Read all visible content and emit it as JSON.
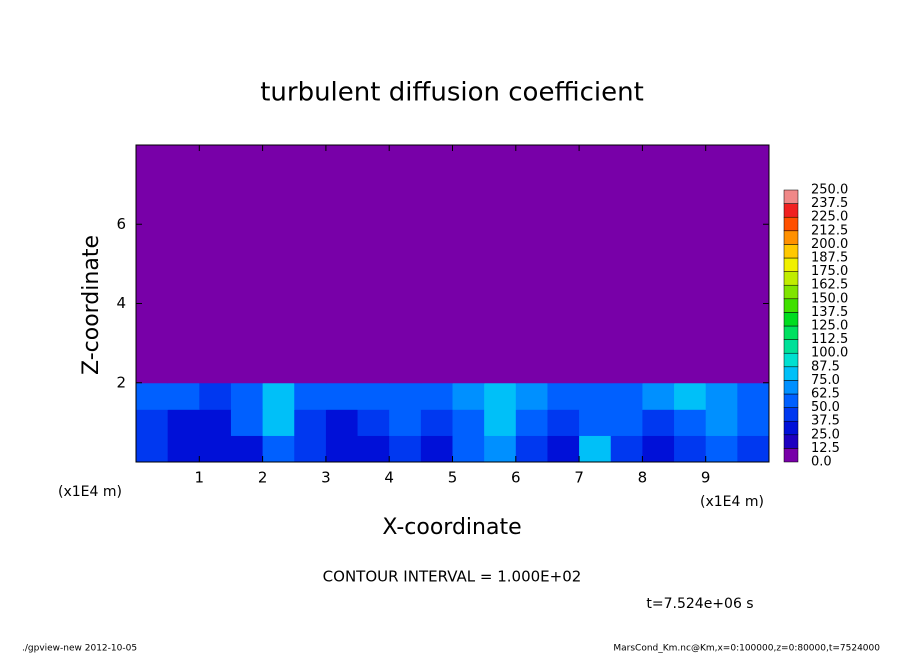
{
  "chart_data": {
    "type": "heatmap",
    "title": "turbulent diffusion coefficient",
    "x_label": "X-coordinate",
    "y_label": "Z-coordinate",
    "x_unit": "(x1E4 m)",
    "annotations": [
      "CONTOUR INTERVAL = 1.000E+02",
      "t=7.524e+06 s"
    ],
    "footer_left": "./gpview-new  2012-10-05",
    "footer_right": "MarsCond_Km.nc@Km,x=0:100000,z=0:80000,t=7524000",
    "xlim": [
      0,
      10
    ],
    "ylim": [
      0,
      8
    ],
    "xticks": [
      1,
      2,
      3,
      4,
      5,
      6,
      7,
      8,
      9
    ],
    "yticks": [
      2,
      4,
      6
    ],
    "x_edges": [
      0,
      0.5,
      1,
      1.5,
      2,
      2.5,
      3,
      3.5,
      4,
      4.5,
      5,
      5.5,
      6,
      6.5,
      7,
      7.5,
      8,
      8.5,
      9,
      9.5,
      10
    ],
    "y_edges": [
      0,
      0.67,
      1.33,
      2,
      8
    ],
    "z": [
      [
        40,
        30,
        25,
        35,
        50,
        45,
        30,
        35,
        45,
        30,
        50,
        70,
        40,
        30,
        80,
        45,
        30,
        40,
        55,
        45
      ],
      [
        45,
        35,
        30,
        55,
        75,
        40,
        35,
        45,
        55,
        45,
        60,
        85,
        50,
        40,
        55,
        60,
        45,
        55,
        70,
        50
      ],
      [
        55,
        50,
        45,
        60,
        80,
        55,
        50,
        55,
        60,
        55,
        65,
        80,
        70,
        55,
        50,
        55,
        65,
        85,
        70,
        60
      ],
      [
        0,
        0,
        0,
        0,
        0,
        0,
        0,
        0,
        0,
        0,
        0,
        0,
        0,
        0,
        0,
        0,
        0,
        0,
        0,
        0
      ]
    ],
    "levels": [
      {
        "value": 0,
        "label": "0.0"
      },
      12.5,
      {
        "value": 25,
        "label": "25.0"
      },
      37.5,
      {
        "value": 50,
        "label": "50.0"
      },
      62.5,
      {
        "value": 75,
        "label": "75.0"
      },
      87.5,
      {
        "value": 100,
        "label": "100.0"
      },
      112.5,
      {
        "value": 125,
        "label": "125.0"
      },
      137.5,
      {
        "value": 150,
        "label": "150.0"
      },
      162.5,
      {
        "value": 175,
        "label": "175.0"
      },
      187.5,
      {
        "value": 200,
        "label": "200.0"
      },
      212.5,
      {
        "value": 225,
        "label": "225.0"
      },
      237.5,
      {
        "value": 250,
        "label": "250.0"
      }
    ],
    "colors": [
      "#7800a8",
      "#1e00c0",
      "#0010d8",
      "#0038f0",
      "#0060ff",
      "#0090ff",
      "#00c0f8",
      "#00e0d0",
      "#00e098",
      "#00e060",
      "#00dc20",
      "#40e000",
      "#80e400",
      "#c0ec00",
      "#f0f000",
      "#ffc800",
      "#ff9000",
      "#ff5000",
      "#f02020",
      "#f08888"
    ]
  }
}
